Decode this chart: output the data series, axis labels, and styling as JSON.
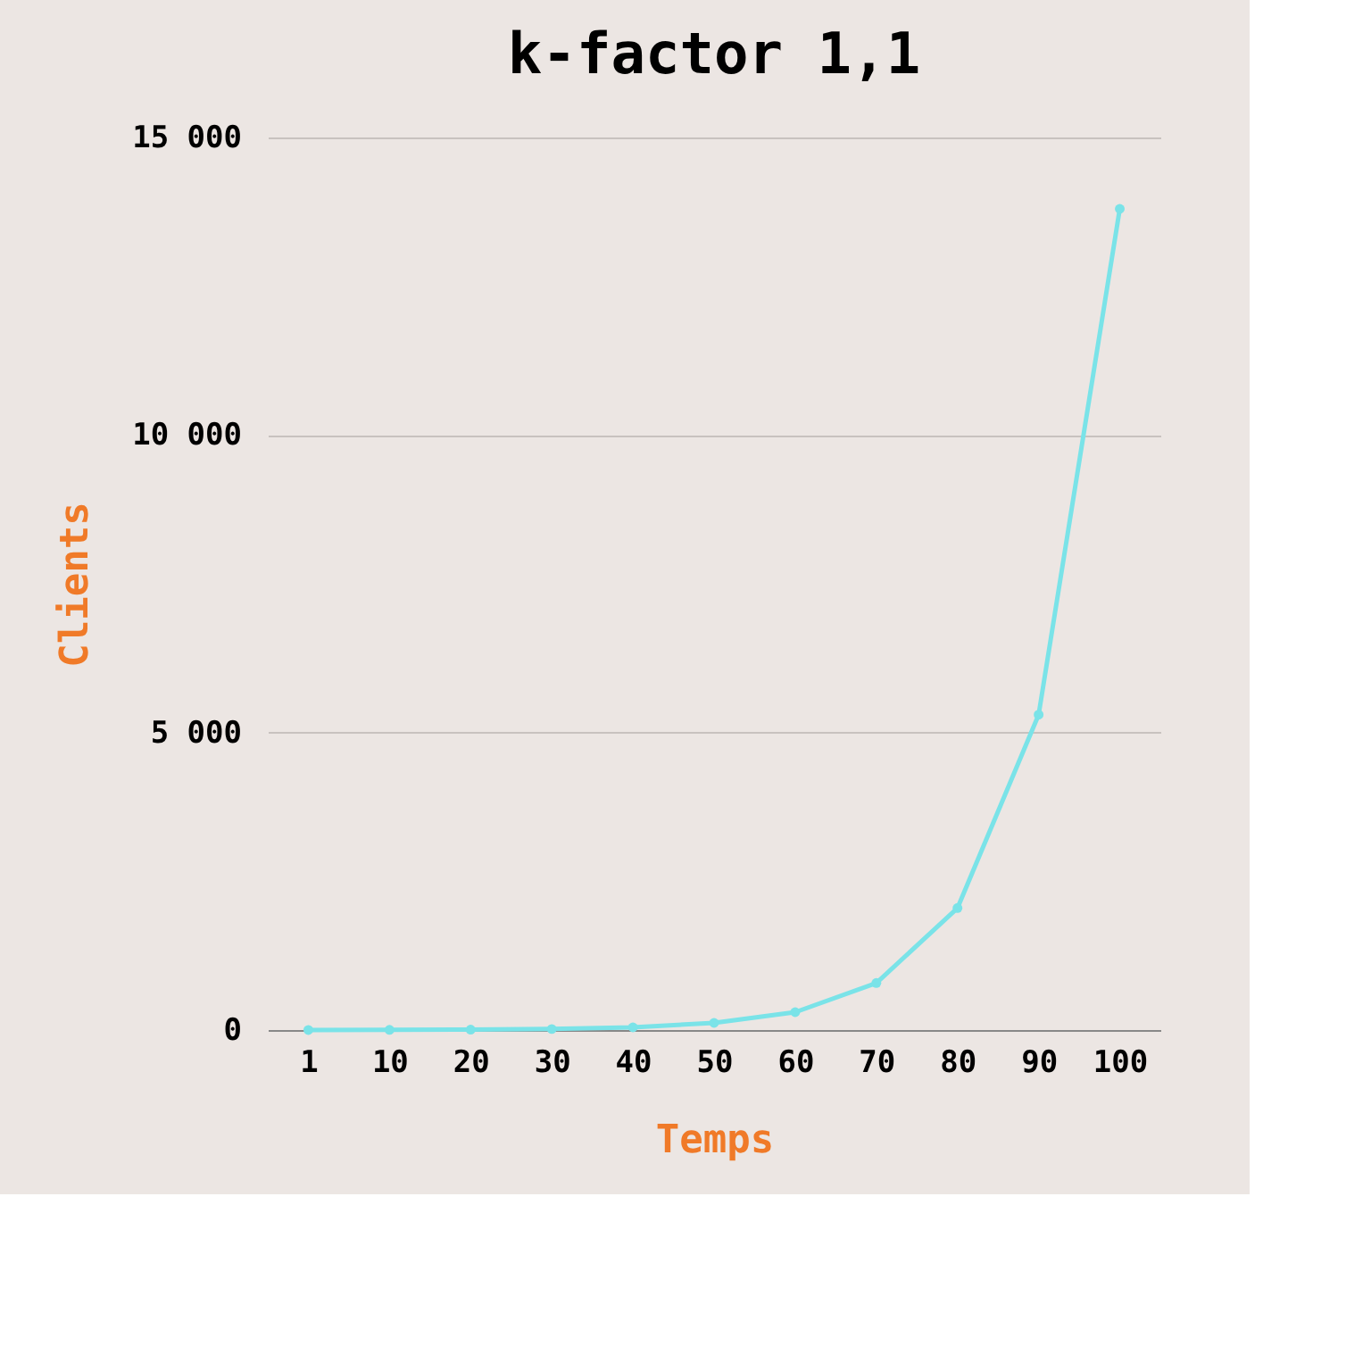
{
  "chart_data": {
    "type": "line",
    "title": "k-factor 1,1",
    "xlabel": "Temps",
    "ylabel": "Clients",
    "categories": [
      "1",
      "10",
      "20",
      "30",
      "40",
      "50",
      "60",
      "70",
      "80",
      "90",
      "100"
    ],
    "series": [
      {
        "color": "#7ae3e8",
        "values": [
          1,
          3,
          7,
          17,
          45,
          120,
          300,
          790,
          2050,
          5300,
          13800
        ]
      }
    ],
    "ylim": [
      0,
      15000
    ],
    "yticks": [
      0,
      {
        "value": 5000,
        "label": "5 000"
      },
      {
        "value": 10000,
        "label": "10 000"
      },
      {
        "value": 15000,
        "label": "15 000"
      }
    ],
    "grid": "y",
    "marker": "circle",
    "line_style": "solid"
  }
}
